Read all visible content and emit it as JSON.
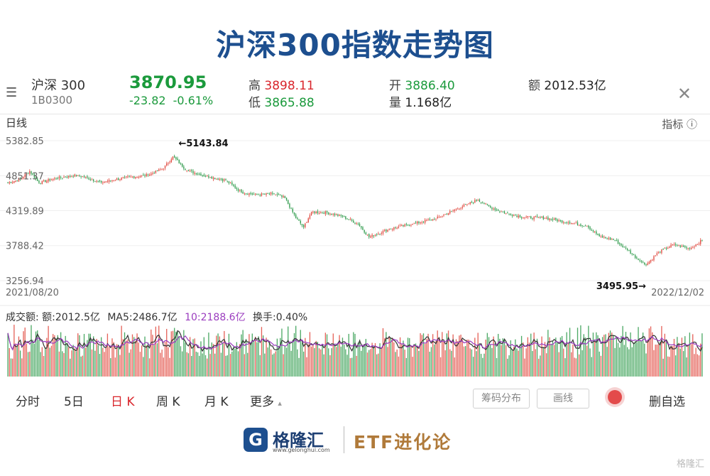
{
  "title": "沪深300指数走势图",
  "quote": {
    "name": "沪深 300",
    "code": "1B0300",
    "price": "3870.95",
    "change": "-23.82",
    "change_pct": "-0.61%",
    "high_label": "高",
    "high": "3898.11",
    "low_label": "低",
    "low": "3865.88",
    "open_label": "开",
    "open": "3886.40",
    "volume_label": "量",
    "volume": "1.168亿",
    "amount_label": "额",
    "amount": "2012.53亿"
  },
  "period_label": "日线",
  "indicator_label": "指标",
  "chart_data": {
    "type": "candlestick",
    "y_ticks": [
      "5382.85",
      "4851.37",
      "4319.89",
      "3788.42",
      "3256.94"
    ],
    "ylim": [
      3256.94,
      5382.85
    ],
    "start_date": "2021/08/20",
    "end_date": "2022/12/02",
    "annotations": {
      "max_text": "←5143.84",
      "min_text": "3495.95→"
    },
    "anchors": [
      [
        0,
        4740
      ],
      [
        8,
        4800
      ],
      [
        14,
        4920
      ],
      [
        20,
        4740
      ],
      [
        30,
        4810
      ],
      [
        45,
        4860
      ],
      [
        60,
        4750
      ],
      [
        75,
        4820
      ],
      [
        90,
        4860
      ],
      [
        100,
        4960
      ],
      [
        106,
        5143.84
      ],
      [
        115,
        4930
      ],
      [
        130,
        4830
      ],
      [
        140,
        4780
      ],
      [
        150,
        4600
      ],
      [
        160,
        4560
      ],
      [
        170,
        4580
      ],
      [
        178,
        4510
      ],
      [
        185,
        4210
      ],
      [
        190,
        4070
      ],
      [
        195,
        4300
      ],
      [
        205,
        4290
      ],
      [
        215,
        4230
      ],
      [
        225,
        4120
      ],
      [
        232,
        3920
      ],
      [
        245,
        4040
      ],
      [
        260,
        4120
      ],
      [
        275,
        4200
      ],
      [
        285,
        4310
      ],
      [
        295,
        4420
      ],
      [
        302,
        4480
      ],
      [
        310,
        4370
      ],
      [
        320,
        4280
      ],
      [
        332,
        4220
      ],
      [
        345,
        4210
      ],
      [
        360,
        4140
      ],
      [
        372,
        4090
      ],
      [
        380,
        3930
      ],
      [
        390,
        3870
      ],
      [
        398,
        3720
      ],
      [
        406,
        3560
      ],
      [
        410,
        3495.95
      ],
      [
        418,
        3690
      ],
      [
        428,
        3810
      ],
      [
        438,
        3740
      ],
      [
        446,
        3870.95
      ]
    ],
    "volume_info": {
      "label": "成交额: 额:2012.5亿",
      "ma5": "MA5:2486.7亿",
      "ma10": "10:2188.6亿",
      "turnover": "换手:0.40%"
    },
    "colors": {
      "up": "#e0463c",
      "down": "#2d9a4a",
      "ma5": "#333333",
      "ma10": "#9b3dbf"
    }
  },
  "tabs": [
    "分时",
    "5日",
    "日 K",
    "周 K",
    "月 K",
    "更多"
  ],
  "tab_more_arrow": "▴",
  "buttons": {
    "chips": "筹码分布",
    "draw": "画线",
    "delete": "删自选"
  },
  "brand": {
    "logo_mark": "G",
    "name": "格隆汇",
    "site": "www.gelonghui.com",
    "etf": "ETF进化论"
  },
  "watermark": "格隆汇"
}
